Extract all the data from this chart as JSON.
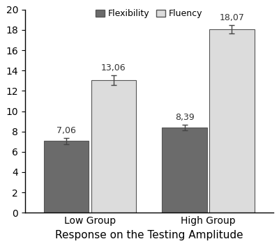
{
  "groups": [
    "Low Group",
    "High Group"
  ],
  "flexibility_values": [
    7.06,
    8.39
  ],
  "fluency_values": [
    13.06,
    18.07
  ],
  "flexibility_errors": [
    0.3,
    0.3
  ],
  "fluency_errors": [
    0.5,
    0.4
  ],
  "flexibility_color": "#6b6b6b",
  "fluency_color": "#dcdcdc",
  "bar_edge_color": "#555555",
  "xlabel": "Response on the Testing Amplitude",
  "ylim": [
    0,
    20
  ],
  "yticks": [
    0,
    2,
    4,
    6,
    8,
    10,
    12,
    14,
    16,
    18,
    20
  ],
  "legend_labels": [
    "Flexibility",
    "Fluency"
  ],
  "bar_width": 0.38,
  "group_centers": [
    1.0,
    2.0
  ],
  "label_fontsize": 10,
  "annotation_fontsize": 9,
  "tick_fontsize": 10,
  "xlabel_fontsize": 11
}
